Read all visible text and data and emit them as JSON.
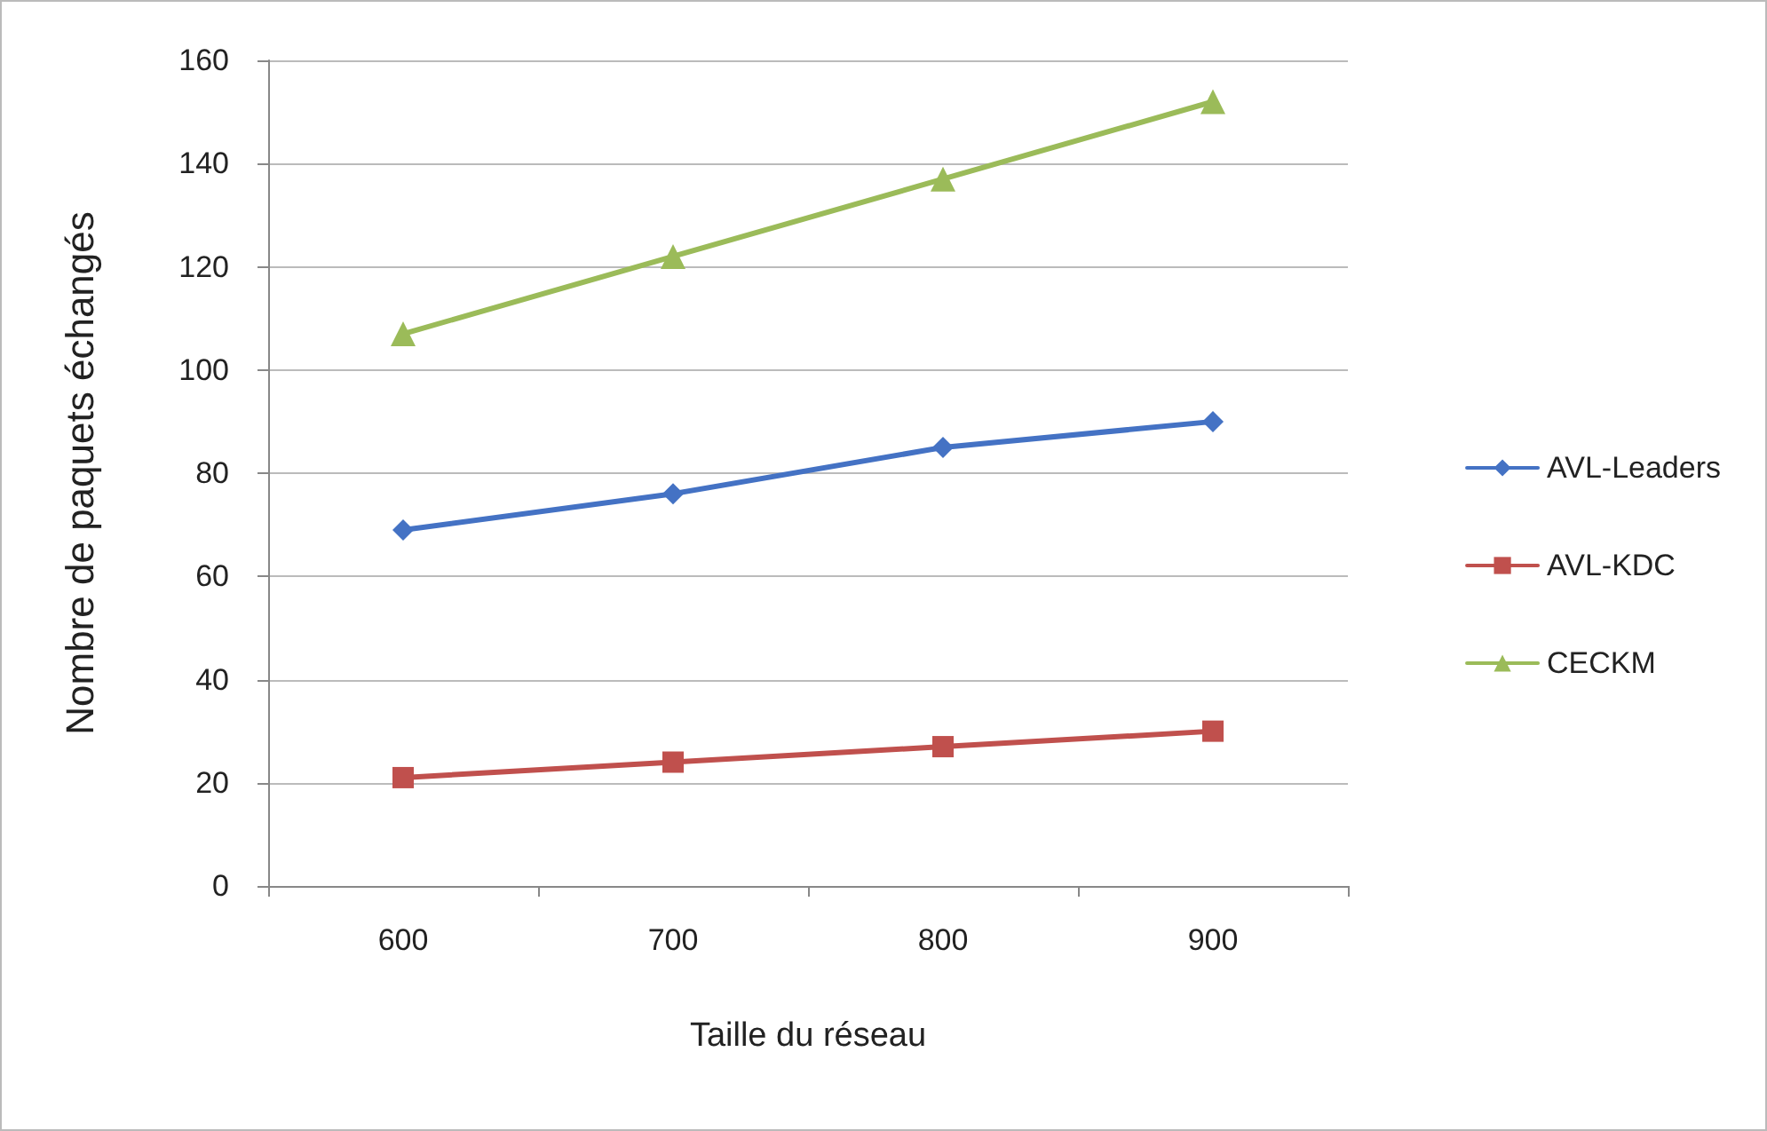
{
  "chart_data": {
    "type": "line",
    "xlabel": "Taille du réseau",
    "ylabel": "Nombre de paquets échangés",
    "categories": [
      "600",
      "700",
      "800",
      "900"
    ],
    "series": [
      {
        "name": "AVL-Leaders",
        "color": "#4472c4",
        "marker": "diamond",
        "values": [
          69,
          76,
          85,
          90
        ]
      },
      {
        "name": "AVL-KDC",
        "color": "#c0504d",
        "marker": "square",
        "values": [
          21,
          24,
          27,
          30
        ]
      },
      {
        "name": "CECKM",
        "color": "#9bbb59",
        "marker": "triangle",
        "values": [
          107,
          122,
          137,
          152
        ]
      }
    ],
    "ylim": [
      0,
      160
    ],
    "yticks": [
      0,
      20,
      40,
      60,
      80,
      100,
      120,
      140,
      160
    ],
    "grid": "y",
    "legend": "right",
    "line_style": "solid"
  }
}
